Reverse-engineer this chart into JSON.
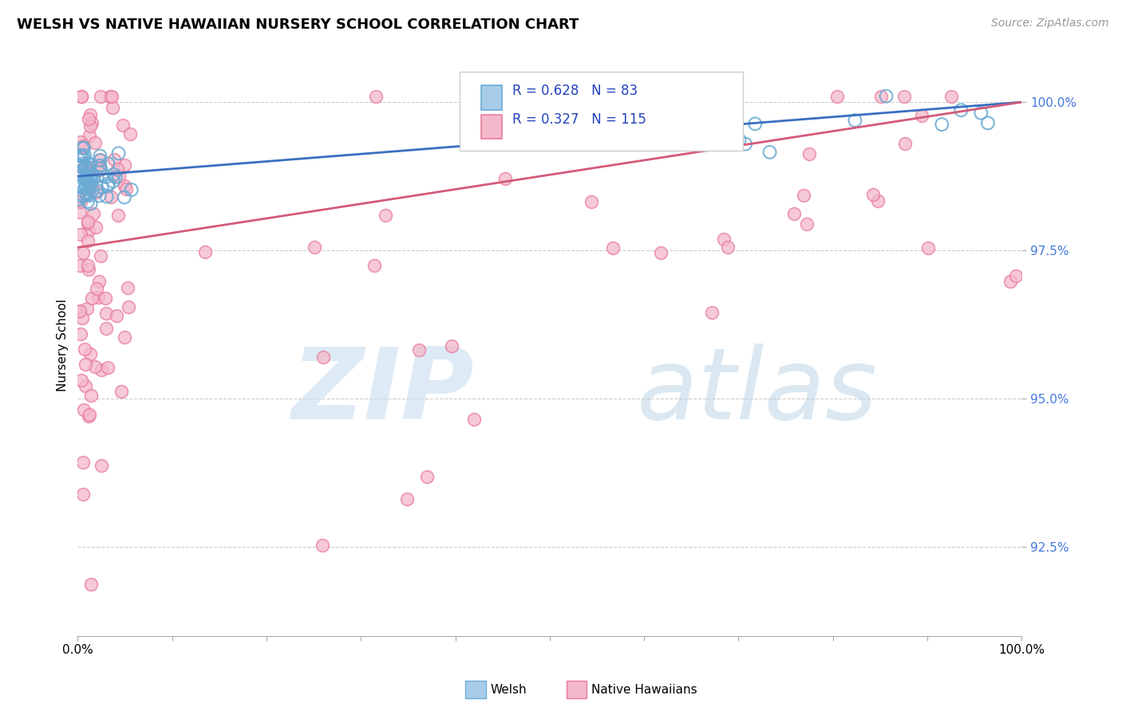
{
  "title": "WELSH VS NATIVE HAWAIIAN NURSERY SCHOOL CORRELATION CHART",
  "source": "Source: ZipAtlas.com",
  "ylabel": "Nursery School",
  "welsh_R": 0.628,
  "welsh_N": 83,
  "hawaiian_R": 0.327,
  "hawaiian_N": 115,
  "welsh_color": "#a8cce8",
  "welsh_edge_color": "#6aaad4",
  "hawaiian_color": "#f4b8cb",
  "hawaiian_edge_color": "#e87a9a",
  "welsh_line_color": "#3a6fbf",
  "hawaiian_line_color": "#d45a7a",
  "ytick_labels": [
    "92.5%",
    "95.0%",
    "97.5%",
    "100.0%"
  ],
  "ytick_values": [
    0.925,
    0.95,
    0.975,
    1.0
  ],
  "ytick_color": "#4477dd",
  "xlim": [
    0.0,
    1.0
  ],
  "ylim": [
    0.91,
    1.008
  ],
  "legend_welsh": "Welsh",
  "legend_hawaiian": "Native Hawaiians",
  "title_fontsize": 13,
  "source_fontsize": 10,
  "ylabel_fontsize": 11,
  "tick_fontsize": 11,
  "legend_fontsize": 12
}
